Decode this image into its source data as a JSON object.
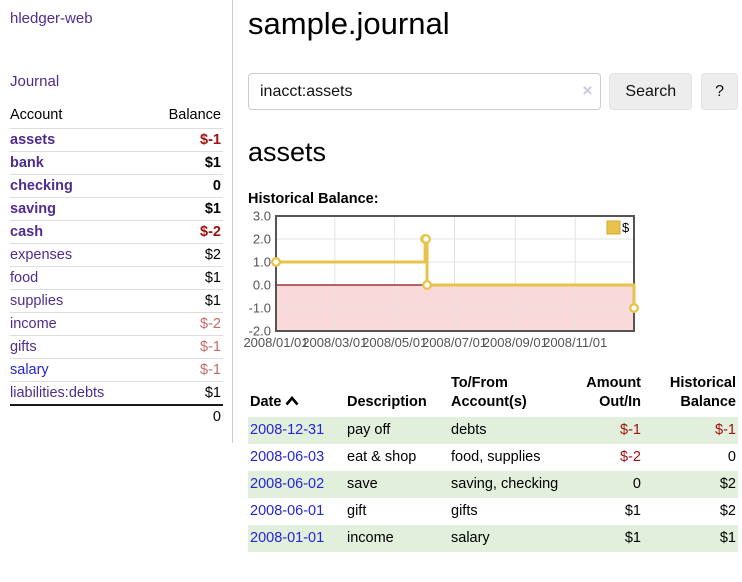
{
  "colors": {
    "purple_link": "#4f2d8f",
    "blue_link": "#2525d4",
    "negative_dark": "#a01010",
    "negative_light": "#c46a6a",
    "register_row_shade": "#e1efdc",
    "chart_line": "#e8c34c",
    "chart_negative_region": "#f9d9d9",
    "chart_zero_line": "#8b1111"
  },
  "sidebar": {
    "app_title": "hledger-web",
    "journal_link": "Journal",
    "table": {
      "account_header": "Account",
      "balance_header": "Balance",
      "rows": [
        {
          "name": "assets",
          "balance": "$-1",
          "indent": 1,
          "bold": true,
          "balance_color": "negative-dark",
          "link_color": "purple"
        },
        {
          "name": "bank",
          "balance": "$1",
          "indent": 2,
          "bold": true,
          "balance_color": "normal",
          "link_color": "purple"
        },
        {
          "name": "checking",
          "balance": "0",
          "indent": 3,
          "bold": true,
          "balance_color": "normal",
          "link_color": "purple"
        },
        {
          "name": "saving",
          "balance": "$1",
          "indent": 3,
          "bold": true,
          "balance_color": "normal",
          "link_color": "purple"
        },
        {
          "name": "cash",
          "balance": "$-2",
          "indent": 2,
          "bold": true,
          "balance_color": "negative-dark",
          "link_color": "purple"
        },
        {
          "name": "expenses",
          "balance": "$2",
          "indent": 1,
          "bold": false,
          "balance_color": "normal",
          "link_color": "purple"
        },
        {
          "name": "food",
          "balance": "$1",
          "indent": 2,
          "bold": false,
          "balance_color": "normal",
          "link_color": "purple"
        },
        {
          "name": "supplies",
          "balance": "$1",
          "indent": 2,
          "bold": false,
          "balance_color": "normal",
          "link_color": "purple"
        },
        {
          "name": "income",
          "balance": "$-2",
          "indent": 1,
          "bold": false,
          "balance_color": "negative-light",
          "link_color": "purple"
        },
        {
          "name": "gifts",
          "balance": "$-1",
          "indent": 2,
          "bold": false,
          "balance_color": "negative-light",
          "link_color": "purple"
        },
        {
          "name": "salary",
          "balance": "$-1",
          "indent": 2,
          "bold": false,
          "balance_color": "negative-light",
          "link_color": "blue"
        },
        {
          "name": "liabilities:debts",
          "balance": "$1",
          "indent": 1,
          "bold": false,
          "balance_color": "normal",
          "link_color": "purple"
        }
      ],
      "total": "0"
    }
  },
  "header": {
    "title": "sample.journal"
  },
  "search": {
    "value": "inacct:assets",
    "clear_icon": "×",
    "button_label": "Search",
    "help_label": "?"
  },
  "account_page": {
    "heading": "assets",
    "chart_title": "Historical Balance:"
  },
  "chart_data": {
    "type": "line",
    "step": true,
    "title": "Historical Balance:",
    "legend_position": "top-right",
    "grid": true,
    "ylim": [
      -2,
      3
    ],
    "y_ticks": [
      3,
      2,
      1,
      0,
      -1,
      -2
    ],
    "y_tick_labels": [
      "3.0",
      "2.0",
      "1.0",
      "0.0",
      "-1.0",
      "-2.0"
    ],
    "x_ticks": [
      {
        "day": 0,
        "label": "2008/01/01"
      },
      {
        "day": 60,
        "label": "2008/03/01"
      },
      {
        "day": 121,
        "label": "2008/05/01"
      },
      {
        "day": 182,
        "label": "2008/07/01"
      },
      {
        "day": 244,
        "label": "2008/09/01"
      },
      {
        "day": 305,
        "label": "2008/11/01"
      }
    ],
    "xlim_days": [
      0,
      365
    ],
    "series": [
      {
        "name": "$",
        "color": "#e8c34c",
        "points": [
          {
            "date": "2008-01-01",
            "day": 0,
            "value": 1
          },
          {
            "date": "2008-06-01",
            "day": 152,
            "value": 2
          },
          {
            "date": "2008-06-02",
            "day": 153,
            "value": 2
          },
          {
            "date": "2008-06-03",
            "day": 154,
            "value": 0
          },
          {
            "date": "2008-12-31",
            "day": 365,
            "value": -1
          }
        ]
      }
    ],
    "negative_region": {
      "from": 0,
      "to": -2,
      "color": "#f9d9d9"
    },
    "zero_line_color": "#8b1111"
  },
  "register": {
    "columns": [
      {
        "line1": "Date",
        "line2": "",
        "align": "left",
        "sorted": true
      },
      {
        "line1": "Description",
        "line2": "",
        "align": "left",
        "sorted": false
      },
      {
        "line1": "To/From",
        "line2": "Account(s)",
        "align": "left",
        "sorted": false
      },
      {
        "line1": "Amount",
        "line2": "Out/In",
        "align": "right",
        "sorted": false
      },
      {
        "line1": "Historical",
        "line2": "Balance",
        "align": "right",
        "sorted": false
      }
    ],
    "rows": [
      {
        "date": "2008-12-31",
        "description": "pay off",
        "accounts": "debts",
        "amount": "$-1",
        "amount_negative": true,
        "balance": "$-1",
        "balance_negative": true,
        "shaded": true
      },
      {
        "date": "2008-06-03",
        "description": "eat & shop",
        "accounts": "food, supplies",
        "amount": "$-2",
        "amount_negative": true,
        "balance": "0",
        "balance_negative": false,
        "shaded": false
      },
      {
        "date": "2008-06-02",
        "description": "save",
        "accounts": "saving, checking",
        "amount": "0",
        "amount_negative": false,
        "balance": "$2",
        "balance_negative": false,
        "shaded": true
      },
      {
        "date": "2008-06-01",
        "description": "gift",
        "accounts": "gifts",
        "amount": "$1",
        "amount_negative": false,
        "balance": "$2",
        "balance_negative": false,
        "shaded": false
      },
      {
        "date": "2008-01-01",
        "description": "income",
        "accounts": "salary",
        "amount": "$1",
        "amount_negative": false,
        "balance": "$1",
        "balance_negative": false,
        "shaded": true
      }
    ]
  }
}
